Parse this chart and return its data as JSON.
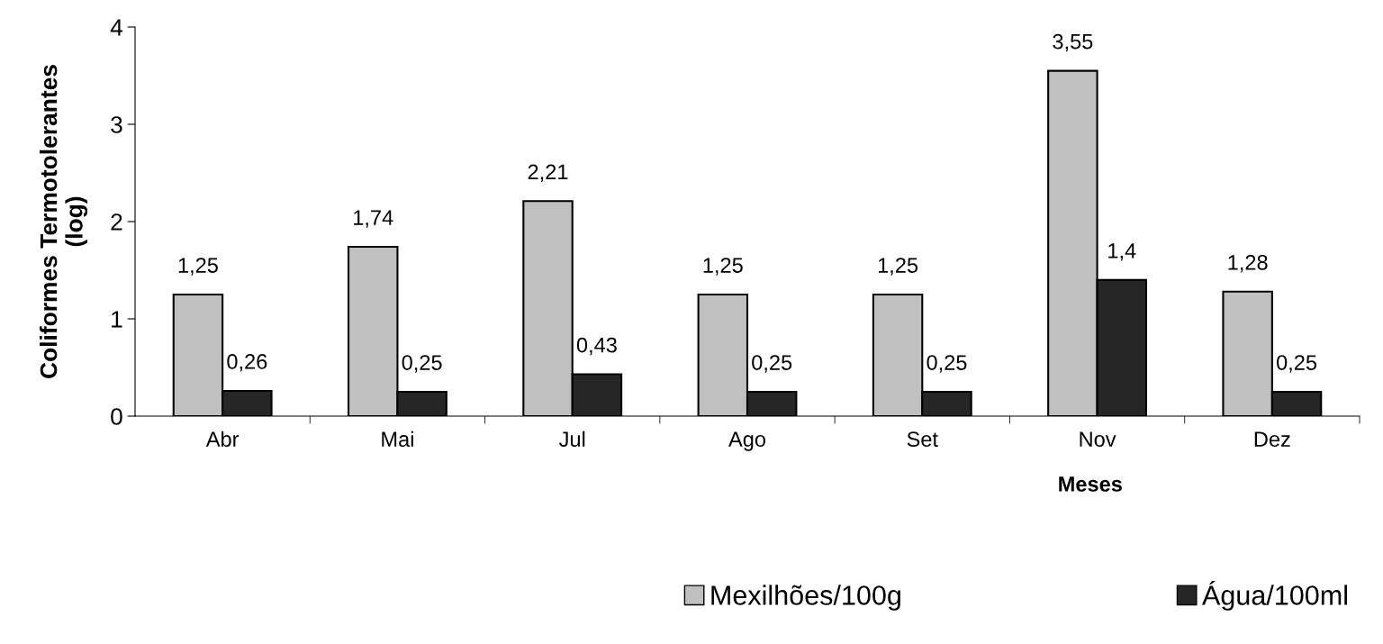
{
  "chart_data": {
    "type": "bar",
    "xlabel": "Meses",
    "ylabel": "Coliformes Termotolerantes\n(log)",
    "categories": [
      "Abr",
      "Mai",
      "Jul",
      "Ago",
      "Set",
      "Nov",
      "Dez"
    ],
    "series": [
      {
        "name": "Mexilhões/100g",
        "color": "#c0c0c0",
        "values": [
          1.25,
          1.74,
          2.21,
          1.25,
          1.25,
          3.55,
          1.28
        ],
        "value_labels": [
          "1,25",
          "1,74",
          "2,21",
          "1,25",
          "1,25",
          "3,55",
          "1,28"
        ]
      },
      {
        "name": "Água/100ml",
        "color": "#262626",
        "values": [
          0.26,
          0.25,
          0.43,
          0.25,
          0.25,
          1.4,
          0.25
        ],
        "value_labels": [
          "0,26",
          "0,25",
          "0,43",
          "0,25",
          "0,25",
          "1,4",
          "0,25"
        ]
      }
    ],
    "ylim": [
      0,
      4
    ],
    "yticks": [
      0,
      1,
      2,
      3,
      4
    ],
    "grid": false,
    "legend": "bottom"
  }
}
